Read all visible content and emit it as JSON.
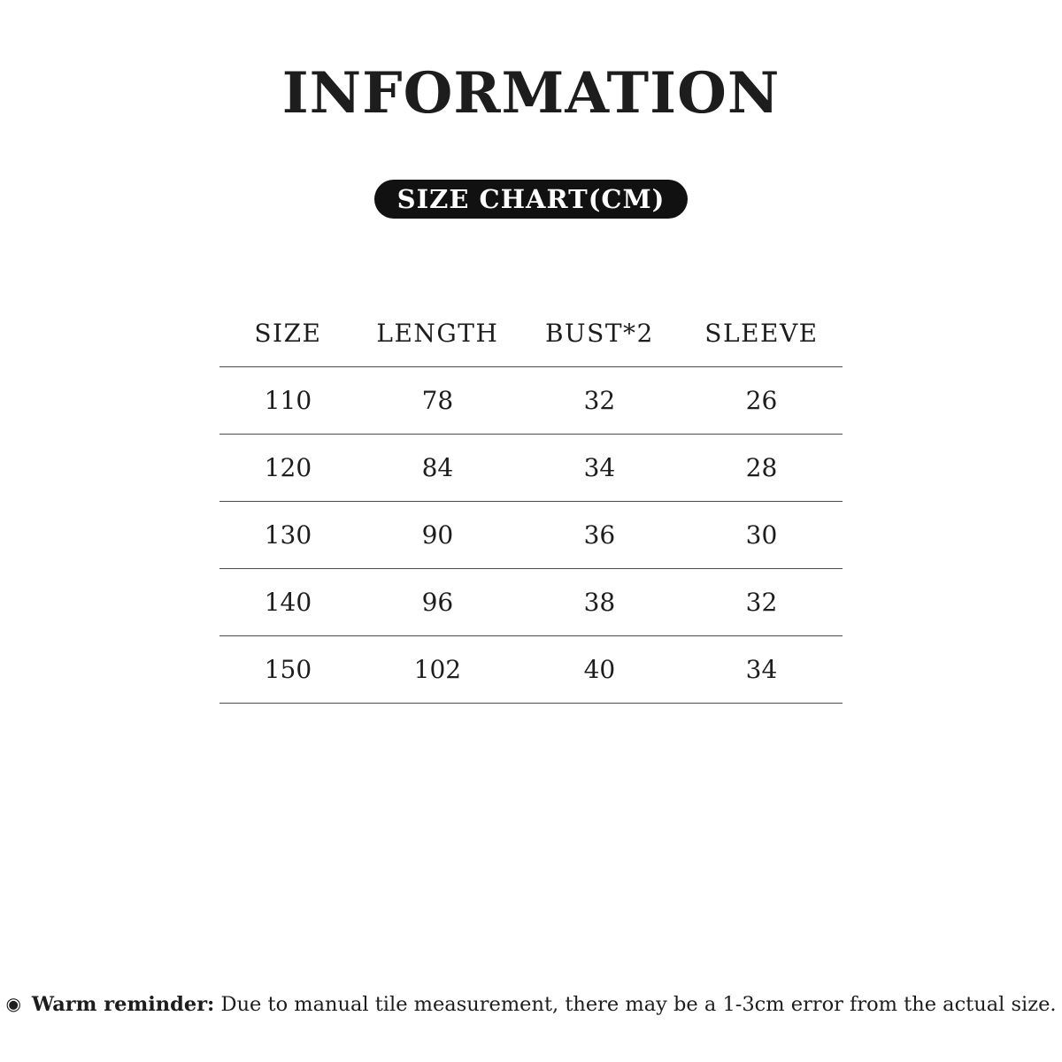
{
  "title": "INFORMATION",
  "badge": "SIZE CHART(CM)",
  "table": {
    "headers": [
      "SIZE",
      "LENGTH",
      "BUST*2",
      "SLEEVE"
    ],
    "rows": [
      [
        "110",
        "78",
        "32",
        "26"
      ],
      [
        "120",
        "84",
        "34",
        "28"
      ],
      [
        "130",
        "90",
        "36",
        "30"
      ],
      [
        "140",
        "96",
        "38",
        "32"
      ],
      [
        "150",
        "102",
        "40",
        "34"
      ]
    ]
  },
  "reminder": {
    "icon": "◉",
    "label": "Warm reminder:",
    "text": " Due to manual tile measurement, there may be a 1-3cm error from the actual size."
  },
  "colors": {
    "background": "#ffffff",
    "text": "#1d1d1d",
    "badge_bg": "#111111",
    "badge_text": "#ffffff",
    "line": "#4a4a4a"
  }
}
